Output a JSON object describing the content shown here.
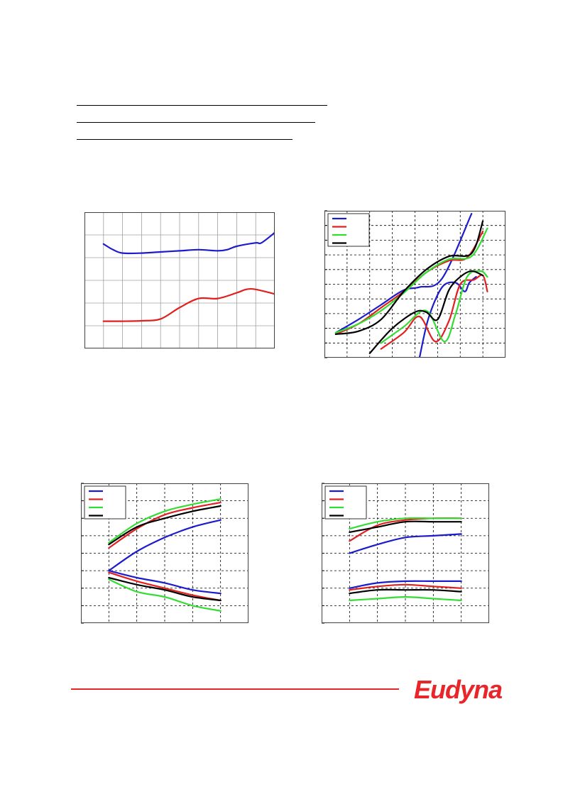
{
  "colors": {
    "blue": "#1c1ccc",
    "red": "#e02020",
    "green": "#33dd33",
    "black": "#000000",
    "grid": "#a0a0a0",
    "frame": "#404040",
    "brand": "#e8262a"
  },
  "footer": {
    "logo_text": "Eudyna"
  },
  "chart_data": [
    {
      "type": "line",
      "grid": "solid",
      "legend": "none",
      "xlim": [
        0,
        10
      ],
      "ylim": [
        0,
        6
      ],
      "series": [
        {
          "color": "blue",
          "x": [
            1,
            1.5,
            2,
            3,
            4,
            5,
            6,
            7,
            7.5,
            8,
            9,
            9.3,
            10
          ],
          "y": [
            4.6,
            4.35,
            4.2,
            4.2,
            4.25,
            4.3,
            4.35,
            4.3,
            4.35,
            4.5,
            4.65,
            4.65,
            5.1
          ]
        },
        {
          "color": "red",
          "x": [
            1,
            2,
            3,
            4,
            5,
            6,
            7,
            8,
            8.5,
            9,
            10
          ],
          "y": [
            1.2,
            1.2,
            1.22,
            1.3,
            1.8,
            2.2,
            2.2,
            2.45,
            2.6,
            2.6,
            2.4
          ]
        }
      ]
    },
    {
      "type": "line",
      "grid": "dashed",
      "legend": "top-left",
      "xlim": [
        0,
        8
      ],
      "ylim": [
        0,
        10
      ],
      "series": [
        {
          "color": "blue",
          "x": [
            0.5,
            1.5,
            2.5,
            3.5,
            4.2,
            5.2,
            6.5
          ],
          "y": [
            1.7,
            2.6,
            3.6,
            4.6,
            4.8,
            5.4,
            9.8
          ]
        },
        {
          "color": "red",
          "x": [
            0.5,
            1.5,
            2.5,
            3.5,
            4.5,
            5.5,
            6.3,
            7.0
          ],
          "y": [
            1.6,
            2.3,
            3.4,
            4.5,
            5.8,
            6.6,
            6.8,
            8.6
          ]
        },
        {
          "color": "green",
          "x": [
            0.5,
            1.5,
            2.5,
            3.5,
            4.5,
            5.5,
            6.5,
            7.2
          ],
          "y": [
            1.7,
            2.3,
            3.2,
            4.4,
            5.8,
            6.7,
            6.9,
            8.8
          ]
        },
        {
          "color": "black",
          "x": [
            0.5,
            1.5,
            2.5,
            3.5,
            4.5,
            5.5,
            6.5,
            7.0
          ],
          "y": [
            1.6,
            1.8,
            2.6,
            4.5,
            6.0,
            6.9,
            7.1,
            9.3
          ]
        },
        {
          "color": "blue",
          "x": [
            4.2,
            4.6,
            5.2,
            5.8,
            6.2,
            6.4,
            6.7
          ],
          "y": [
            0,
            2.7,
            4.8,
            5.1,
            4.5,
            5.1,
            5.5
          ]
        },
        {
          "color": "red",
          "x": [
            2.5,
            3.5,
            4.2,
            4.9,
            5.5,
            6.0,
            6.6,
            7.0,
            7.2
          ],
          "y": [
            0.6,
            1.7,
            2.8,
            1.1,
            2.5,
            5.0,
            5.3,
            5.6,
            4.5
          ]
        },
        {
          "color": "green",
          "x": [
            2.5,
            3.5,
            4.5,
            5.3,
            5.8,
            6.3,
            6.9,
            7.2
          ],
          "y": [
            1.0,
            2.1,
            3.2,
            1.1,
            3.0,
            5.5,
            5.9,
            5.5
          ]
        },
        {
          "color": "black",
          "x": [
            2.0,
            3.0,
            4.0,
            4.5,
            5.0,
            5.5,
            6.0,
            6.5,
            7.0
          ],
          "y": [
            0.3,
            2.0,
            3.1,
            3.1,
            2.6,
            4.6,
            5.5,
            5.9,
            5.6
          ]
        }
      ]
    },
    {
      "type": "line",
      "grid": "dashed",
      "legend": "top-left",
      "xlim": [
        0,
        6
      ],
      "ylim": [
        0,
        8
      ],
      "series": [
        {
          "color": "blue",
          "x": [
            1,
            2,
            3,
            4,
            5
          ],
          "y": [
            3.0,
            4.1,
            4.9,
            5.5,
            5.9
          ]
        },
        {
          "color": "red",
          "x": [
            1,
            2,
            3,
            4,
            5
          ],
          "y": [
            4.3,
            5.4,
            6.2,
            6.6,
            6.9
          ]
        },
        {
          "color": "green",
          "x": [
            1,
            2,
            3,
            4,
            5
          ],
          "y": [
            4.6,
            5.7,
            6.4,
            6.8,
            7.1
          ]
        },
        {
          "color": "black",
          "x": [
            1,
            2,
            3,
            4,
            5
          ],
          "y": [
            4.5,
            5.5,
            6.0,
            6.4,
            6.7
          ]
        },
        {
          "color": "blue",
          "x": [
            1,
            2,
            3,
            4,
            5
          ],
          "y": [
            3.0,
            2.6,
            2.3,
            1.9,
            1.7
          ]
        },
        {
          "color": "red",
          "x": [
            1,
            2,
            3,
            4,
            5
          ],
          "y": [
            2.9,
            2.4,
            2.0,
            1.6,
            1.3
          ]
        },
        {
          "color": "green",
          "x": [
            1,
            2,
            3,
            4,
            5
          ],
          "y": [
            2.5,
            1.8,
            1.5,
            1.0,
            0.7
          ]
        },
        {
          "color": "black",
          "x": [
            1,
            2,
            3,
            4,
            5
          ],
          "y": [
            2.6,
            2.2,
            1.9,
            1.5,
            1.3
          ]
        }
      ]
    },
    {
      "type": "line",
      "grid": "dashed",
      "legend": "top-left",
      "xlim": [
        0,
        6
      ],
      "ylim": [
        0,
        8
      ],
      "series": [
        {
          "color": "blue",
          "x": [
            1,
            2,
            3,
            4,
            5
          ],
          "y": [
            4.0,
            4.5,
            4.9,
            5.0,
            5.1
          ]
        },
        {
          "color": "red",
          "x": [
            1,
            2,
            3,
            4,
            5
          ],
          "y": [
            4.7,
            5.6,
            5.9,
            6.0,
            6.0
          ]
        },
        {
          "color": "green",
          "x": [
            1,
            2,
            3,
            4,
            5
          ],
          "y": [
            5.4,
            5.8,
            6.0,
            6.0,
            6.0
          ]
        },
        {
          "color": "black",
          "x": [
            1,
            2,
            3,
            4,
            5
          ],
          "y": [
            5.2,
            5.5,
            5.8,
            5.8,
            5.8
          ]
        },
        {
          "color": "blue",
          "x": [
            1,
            2,
            3,
            4,
            5
          ],
          "y": [
            2.0,
            2.3,
            2.4,
            2.4,
            2.4
          ]
        },
        {
          "color": "red",
          "x": [
            1,
            2,
            3,
            4,
            5
          ],
          "y": [
            1.9,
            2.1,
            2.2,
            2.1,
            2.0
          ]
        },
        {
          "color": "green",
          "x": [
            1,
            2,
            3,
            4,
            5
          ],
          "y": [
            1.3,
            1.4,
            1.5,
            1.4,
            1.3
          ]
        },
        {
          "color": "black",
          "x": [
            1,
            2,
            3,
            4,
            5
          ],
          "y": [
            1.7,
            1.9,
            1.9,
            1.9,
            1.8
          ]
        }
      ]
    }
  ]
}
